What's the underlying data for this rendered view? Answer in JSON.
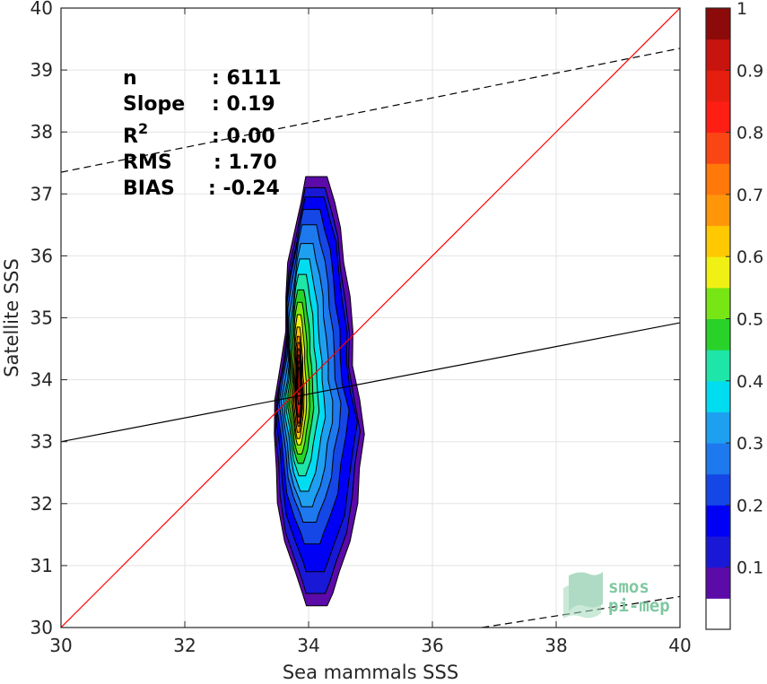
{
  "chart_data": {
    "type": "contour",
    "xlabel": "Sea mammals SSS",
    "ylabel": "Satellite SSS",
    "xlim": [
      30,
      40
    ],
    "ylim": [
      30,
      40
    ],
    "x_ticks": [
      30,
      32,
      34,
      36,
      38,
      40
    ],
    "y_ticks": [
      30,
      31,
      32,
      33,
      34,
      35,
      36,
      37,
      38,
      39,
      40
    ],
    "grid": true,
    "stats": [
      {
        "label": "n",
        "value": ": 6111"
      },
      {
        "label": "Slope",
        "value": ": 0.19"
      },
      {
        "label": "R",
        "sup": "2",
        "value": ": 0.00"
      },
      {
        "label": "RMS",
        "value": ": 1.70"
      },
      {
        "label": "BIAS",
        "value": ": -0.24"
      }
    ],
    "lines": [
      {
        "name": "one-to-one",
        "color": "#ff0000",
        "dash": false,
        "points": [
          [
            30,
            30
          ],
          [
            40,
            40
          ]
        ]
      },
      {
        "name": "regression",
        "color": "#000000",
        "dash": false,
        "points": [
          [
            30,
            33.0
          ],
          [
            40,
            34.92
          ]
        ]
      },
      {
        "name": "upper-bound",
        "color": "#000000",
        "dash": true,
        "points": [
          [
            30,
            37.35
          ],
          [
            40,
            39.35
          ]
        ]
      },
      {
        "name": "lower-bound",
        "color": "#000000",
        "dash": true,
        "points": [
          [
            36.8,
            30.0
          ],
          [
            40,
            30.5
          ]
        ]
      }
    ],
    "density_levels": [
      {
        "level": 0.05,
        "color": "#5c0aa8",
        "x": [
          33.38,
          34.88
        ],
        "y": [
          30.35,
          37.28
        ]
      },
      {
        "level": 0.1,
        "color": "#1818d6",
        "x": [
          33.42,
          34.8
        ],
        "y": [
          30.55,
          37.1
        ]
      },
      {
        "level": 0.15,
        "color": "#0000f5",
        "x": [
          33.45,
          34.75
        ],
        "y": [
          30.9,
          36.95
        ]
      },
      {
        "level": 0.2,
        "color": "#1447e6",
        "x": [
          33.48,
          34.62
        ],
        "y": [
          31.35,
          36.75
        ]
      },
      {
        "level": 0.25,
        "color": "#1e78ee",
        "x": [
          33.52,
          34.5
        ],
        "y": [
          31.7,
          36.5
        ]
      },
      {
        "level": 0.3,
        "color": "#1ea0f0",
        "x": [
          33.56,
          34.38
        ],
        "y": [
          31.95,
          36.2
        ]
      },
      {
        "level": 0.4,
        "color": "#00dcf0",
        "x": [
          33.6,
          34.26
        ],
        "y": [
          32.2,
          35.95
        ]
      },
      {
        "level": 0.45,
        "color": "#1ee6a8",
        "x": [
          33.63,
          34.16
        ],
        "y": [
          32.45,
          35.7
        ]
      },
      {
        "level": 0.5,
        "color": "#28d228",
        "x": [
          33.66,
          34.08
        ],
        "y": [
          32.65,
          35.45
        ]
      },
      {
        "level": 0.55,
        "color": "#78e614",
        "x": [
          33.69,
          34.02
        ],
        "y": [
          32.8,
          35.25
        ]
      },
      {
        "level": 0.6,
        "color": "#f0f014",
        "x": [
          33.72,
          33.97
        ],
        "y": [
          32.95,
          35.05
        ]
      },
      {
        "level": 0.65,
        "color": "#ffc800",
        "x": [
          33.74,
          33.93
        ],
        "y": [
          33.05,
          34.85
        ]
      },
      {
        "level": 0.7,
        "color": "#ff960a",
        "x": [
          33.76,
          33.91
        ],
        "y": [
          33.15,
          34.7
        ]
      },
      {
        "level": 0.75,
        "color": "#ff780a",
        "x": [
          33.78,
          33.9
        ],
        "y": [
          33.25,
          34.6
        ]
      },
      {
        "level": 0.8,
        "color": "#fa4614",
        "x": [
          33.79,
          33.89
        ],
        "y": [
          33.3,
          34.5
        ]
      },
      {
        "level": 0.85,
        "color": "#e61e0f",
        "x": [
          33.8,
          33.88
        ],
        "y": [
          33.4,
          34.4
        ]
      },
      {
        "level": 0.9,
        "color": "#c8140f",
        "x": [
          33.81,
          33.88
        ],
        "y": [
          33.6,
          34.3
        ]
      },
      {
        "level": 0.95,
        "color": "#a00a0a",
        "x": [
          33.82,
          33.87
        ],
        "y": [
          33.8,
          34.2
        ]
      }
    ],
    "colorbar": {
      "range": [
        0,
        1
      ],
      "ticks": [
        "0.1",
        "0.2",
        "0.3",
        "0.4",
        "0.5",
        "0.6",
        "0.7",
        "0.8",
        "0.9",
        "1"
      ],
      "colors": [
        "#ffffff",
        "#5c0aa8",
        "#1818d6",
        "#0000f5",
        "#1447e6",
        "#1e78ee",
        "#1ea0f0",
        "#00dcf0",
        "#1ee6a8",
        "#28d228",
        "#78e614",
        "#f0f014",
        "#ffc800",
        "#ff960a",
        "#ff780a",
        "#fa4614",
        "#ff1e14",
        "#e61e0f",
        "#c8140f",
        "#8c0a0a"
      ]
    },
    "watermark": {
      "line1": "smos",
      "line2": "pi-mep"
    }
  }
}
